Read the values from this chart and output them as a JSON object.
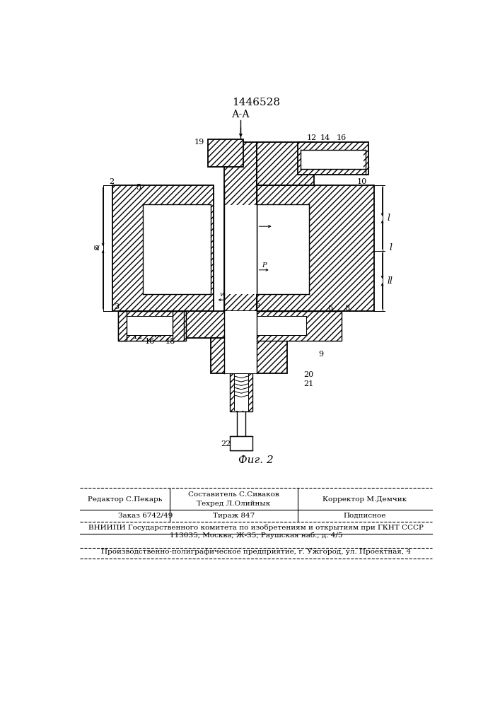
{
  "title": "1446528",
  "fig_label": "Фиг. 2",
  "bg_color": "#f5f5f0",
  "footer": {
    "col1_row1": "Редактор С.Пекарь",
    "col2_row1": "Составитель С.Сиваков",
    "col2_row2": "Техред Л.Олийнык",
    "col3_row1": "Корректор М.Демчик",
    "col1_row2": "Заказ 6742/49",
    "col2_row3": "Тираж 847",
    "col3_row2": "Подписное",
    "line3": "ВНИИПИ Государственного комитета по изобретениям и открытиям при ГКНТ СССР",
    "line4": "113035, Москва, Ж-35, Раушская наб., д. 4/5",
    "line5": "Производственно-полиграфическое предприятие, г. Ужгород, ул. Проектная, 4"
  }
}
